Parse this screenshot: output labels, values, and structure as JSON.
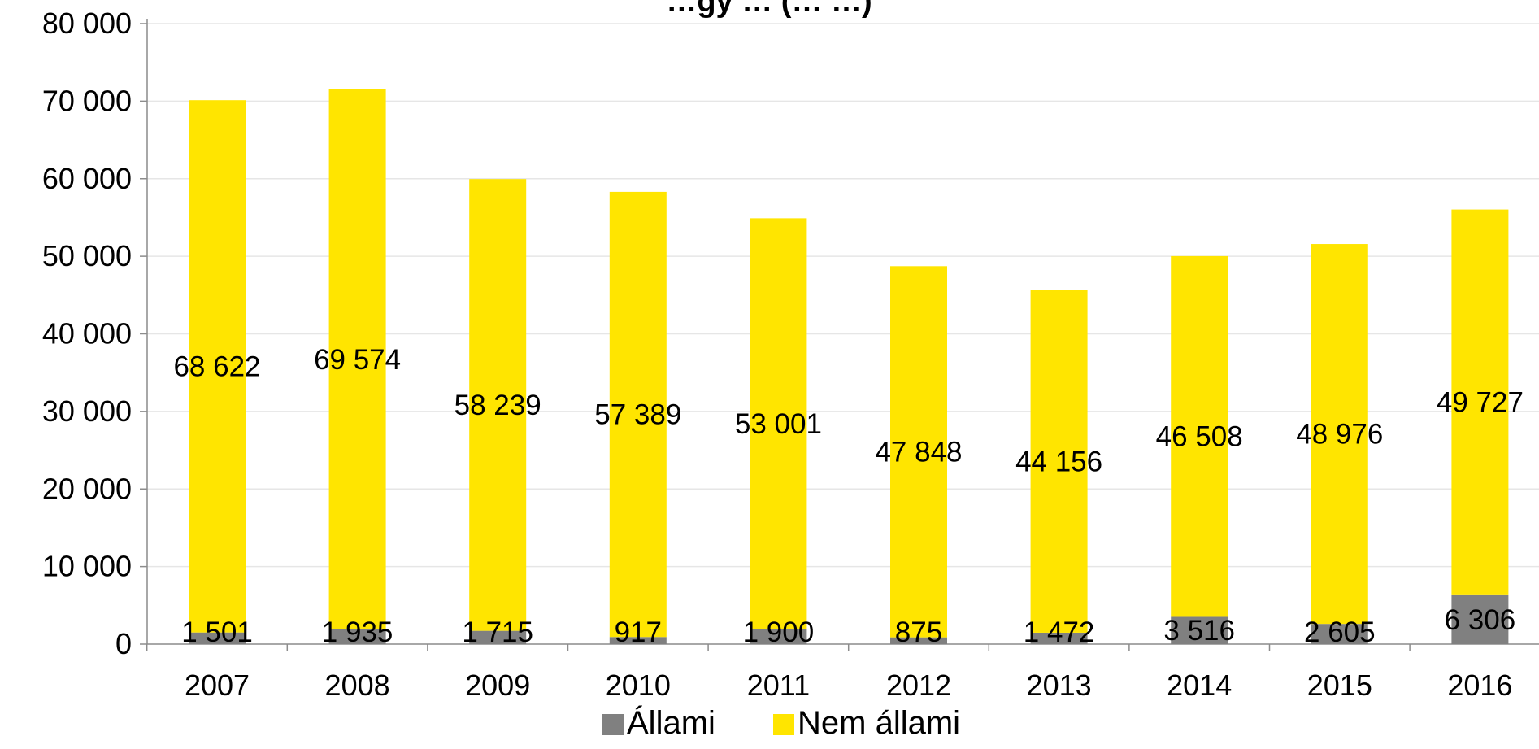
{
  "chart_data": {
    "type": "bar",
    "stacked": true,
    "title": "…gy … (… …)",
    "categories": [
      "2007",
      "2008",
      "2009",
      "2010",
      "2011",
      "2012",
      "2013",
      "2014",
      "2015",
      "2016"
    ],
    "series": [
      {
        "name": "Állami",
        "color": "#808080",
        "values": [
          1501,
          1935,
          1715,
          917,
          1900,
          875,
          1472,
          3516,
          2605,
          6306
        ],
        "labels": [
          "1 501",
          "1 935",
          "1 715",
          "917",
          "1 900",
          "875",
          "1 472",
          "3 516",
          "2 605",
          "6 306"
        ]
      },
      {
        "name": "Nem állami",
        "color": "#FFE500",
        "values": [
          68622,
          69574,
          58239,
          57389,
          53001,
          47848,
          44156,
          46508,
          48976,
          49727
        ],
        "labels": [
          "68 622",
          "69 574",
          "58 239",
          "57 389",
          "53 001",
          "47 848",
          "44 156",
          "46 508",
          "48 976",
          "49 727"
        ]
      }
    ],
    "ylim": [
      0,
      80000
    ],
    "yticks": [
      0,
      10000,
      20000,
      30000,
      40000,
      50000,
      60000,
      70000,
      80000
    ],
    "ytick_labels": [
      "0",
      "10 000",
      "20 000",
      "30 000",
      "40 000",
      "50 000",
      "60 000",
      "70 000",
      "80 000"
    ],
    "xlabel": "",
    "ylabel": "",
    "grid": true,
    "legend": {
      "position": "bottom",
      "entries": [
        "Állami",
        "Nem állami"
      ]
    }
  }
}
